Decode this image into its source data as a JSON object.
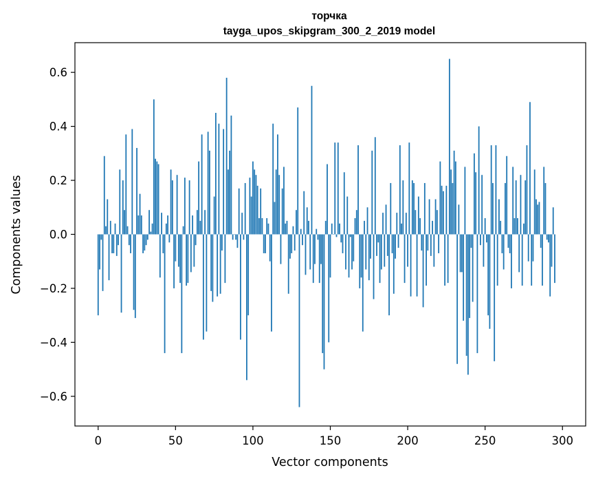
{
  "chart_data": {
    "type": "bar",
    "title": "торчка",
    "subtitle": "tayga_upos_skipgram_300_2_2019 model",
    "xlabel": "Vector components",
    "ylabel": "Components values",
    "xlim": [
      -15,
      315
    ],
    "ylim": [
      -0.71,
      0.71
    ],
    "xticks": [
      0,
      50,
      100,
      150,
      200,
      250,
      300
    ],
    "xtick_labels": [
      "0",
      "50",
      "100",
      "150",
      "200",
      "250",
      "300"
    ],
    "yticks": [
      -0.6,
      -0.4,
      -0.2,
      0.0,
      0.2,
      0.4,
      0.6
    ],
    "ytick_labels": [
      "−0.6",
      "−0.4",
      "−0.2",
      "0.0",
      "0.2",
      "0.4",
      "0.6"
    ],
    "grid": false,
    "bar_color": "#1f77b4",
    "x_start": 0,
    "values": [
      -0.3,
      -0.13,
      -0.02,
      -0.21,
      0.29,
      0.03,
      0.13,
      -0.17,
      0.05,
      -0.07,
      -0.07,
      0.04,
      -0.08,
      -0.04,
      0.24,
      -0.29,
      0.2,
      0.09,
      0.37,
      0.03,
      -0.04,
      -0.07,
      0.39,
      -0.28,
      -0.31,
      0.32,
      0.07,
      0.15,
      0.07,
      -0.07,
      -0.06,
      -0.04,
      -0.02,
      0.09,
      0.01,
      0.04,
      0.5,
      0.28,
      0.27,
      0.26,
      -0.16,
      0.08,
      -0.07,
      -0.44,
      0.04,
      0.07,
      -0.03,
      0.24,
      0.2,
      -0.2,
      -0.1,
      0.22,
      -0.12,
      -0.18,
      -0.44,
      0.03,
      0.21,
      -0.19,
      -0.18,
      0.2,
      -0.14,
      0.07,
      -0.12,
      -0.04,
      0.09,
      0.27,
      0.05,
      0.37,
      -0.39,
      0.09,
      -0.36,
      0.38,
      0.31,
      -0.21,
      -0.25,
      0.14,
      0.45,
      -0.23,
      0.41,
      -0.22,
      -0.06,
      0.39,
      -0.18,
      0.58,
      0.24,
      0.31,
      0.44,
      -0.02,
      0.0,
      -0.02,
      -0.05,
      0.17,
      -0.39,
      0.08,
      -0.02,
      0.19,
      -0.54,
      -0.3,
      0.21,
      0.14,
      0.27,
      0.24,
      0.22,
      0.18,
      0.06,
      0.17,
      0.06,
      -0.07,
      -0.07,
      0.06,
      0.04,
      -0.1,
      -0.36,
      0.41,
      0.12,
      0.24,
      0.37,
      0.22,
      -0.11,
      0.17,
      0.25,
      0.04,
      0.05,
      -0.22,
      -0.09,
      -0.07,
      0.03,
      -0.06,
      0.09,
      0.47,
      -0.64,
      0.02,
      -0.04,
      0.16,
      -0.15,
      0.1,
      0.05,
      -0.13,
      0.55,
      -0.18,
      -0.11,
      0.02,
      -0.02,
      -0.18,
      -0.11,
      -0.44,
      -0.5,
      0.05,
      0.26,
      -0.4,
      -0.16,
      0.04,
      0.0,
      0.34,
      -0.01,
      0.34,
      0.04,
      -0.03,
      -0.07,
      0.23,
      -0.13,
      0.14,
      -0.16,
      -0.01,
      -0.13,
      -0.1,
      0.06,
      0.09,
      0.33,
      -0.2,
      -0.16,
      -0.36,
      0.05,
      -0.13,
      0.1,
      -0.17,
      -0.09,
      0.31,
      -0.24,
      0.36,
      -0.08,
      -0.03,
      -0.18,
      -0.13,
      0.08,
      -0.12,
      0.11,
      -0.08,
      -0.3,
      0.19,
      -0.07,
      -0.22,
      -0.09,
      0.08,
      -0.05,
      0.33,
      0.04,
      0.2,
      -0.18,
      0.08,
      -0.12,
      0.34,
      -0.23,
      0.2,
      0.19,
      0.09,
      -0.23,
      0.14,
      0.06,
      -0.06,
      -0.27,
      0.19,
      -0.19,
      -0.06,
      0.13,
      -0.08,
      0.05,
      -0.12,
      0.13,
      0.09,
      -0.07,
      0.27,
      0.18,
      0.16,
      -0.19,
      0.18,
      -0.18,
      0.65,
      0.24,
      0.19,
      0.31,
      0.27,
      -0.48,
      0.11,
      -0.14,
      -0.14,
      -0.32,
      0.25,
      -0.45,
      -0.52,
      -0.31,
      -0.05,
      -0.25,
      0.3,
      0.23,
      -0.44,
      0.4,
      -0.04,
      0.22,
      -0.12,
      0.06,
      -0.03,
      -0.3,
      -0.35,
      0.33,
      0.19,
      -0.47,
      0.33,
      -0.19,
      0.13,
      0.05,
      -0.07,
      -0.13,
      0.19,
      0.29,
      -0.05,
      -0.07,
      -0.2,
      0.25,
      0.06,
      0.2,
      0.06,
      -0.14,
      0.22,
      -0.19,
      0.04,
      0.2,
      0.33,
      -0.1,
      0.49,
      -0.19,
      -0.1,
      0.24,
      0.13,
      0.11,
      0.12,
      -0.05,
      -0.19,
      0.25,
      0.19,
      -0.02,
      -0.03,
      -0.23,
      -0.12,
      0.1,
      -0.18
    ]
  }
}
